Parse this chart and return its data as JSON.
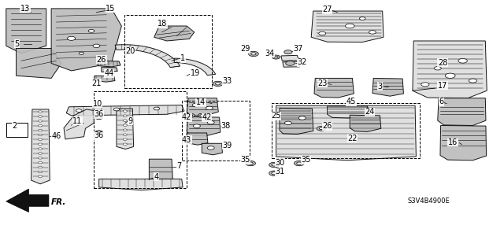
{
  "background_color": "#ffffff",
  "diagram_code": "S3V4B4900E",
  "arrow_label": "FR.",
  "line_color": "#000000",
  "text_color": "#000000",
  "label_fontsize": 7.0,
  "figsize": [
    6.4,
    3.19
  ],
  "dpi": 100,
  "fc_gray": "#bbbbbb",
  "fc_light": "#dddddd",
  "fc_white": "#ffffff",
  "fc_dark": "#888888"
}
